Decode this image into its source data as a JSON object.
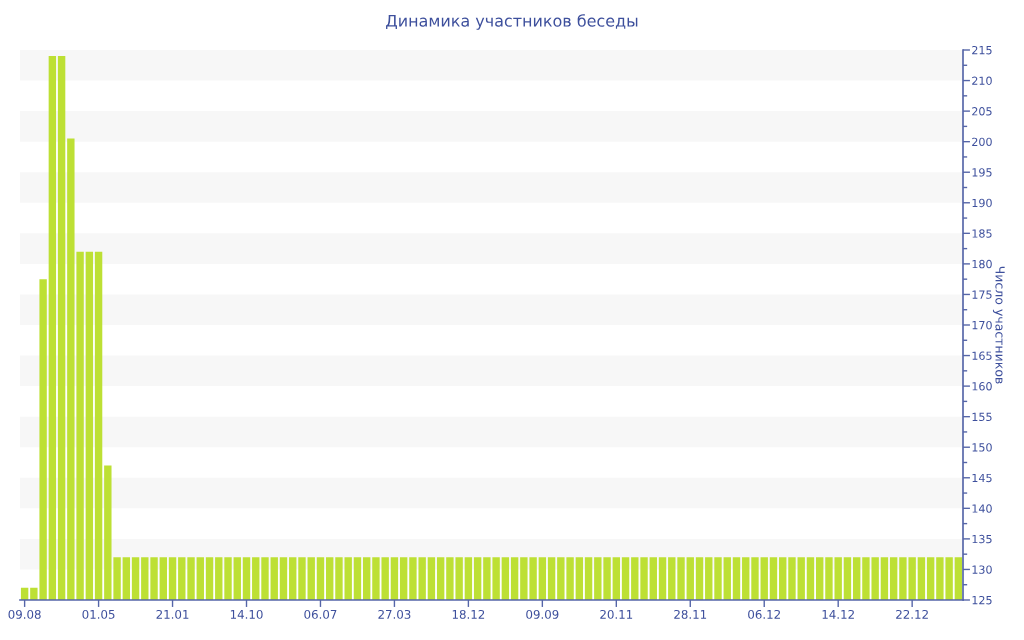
{
  "chart_data": {
    "type": "bar",
    "title": "Динамика участников беседы",
    "ylabel": "Число участников",
    "categories": [
      "09.08",
      null,
      null,
      null,
      null,
      null,
      null,
      null,
      "01.05",
      null,
      null,
      null,
      null,
      null,
      null,
      null,
      "21.01",
      null,
      null,
      null,
      null,
      null,
      null,
      null,
      "14.10",
      null,
      null,
      null,
      null,
      null,
      null,
      null,
      "06.07",
      null,
      null,
      null,
      null,
      null,
      null,
      null,
      "27.03",
      null,
      null,
      null,
      null,
      null,
      null,
      null,
      "18.12",
      null,
      null,
      null,
      null,
      null,
      null,
      null,
      "09.09",
      null,
      null,
      null,
      null,
      null,
      null,
      null,
      "20.11",
      null,
      null,
      null,
      null,
      null,
      null,
      null,
      "28.11",
      null,
      null,
      null,
      null,
      null,
      null,
      null,
      "06.12",
      null,
      null,
      null,
      null,
      null,
      null,
      null,
      "14.12",
      null,
      null,
      null,
      null,
      null,
      null,
      null,
      "22.12",
      null,
      null,
      null,
      null,
      null
    ],
    "series": [
      {
        "color": "#bde034",
        "values": [
          127,
          127,
          177.5,
          214,
          214,
          200.5,
          182,
          182,
          182,
          147,
          132,
          132,
          132,
          132,
          132,
          132,
          132,
          132,
          132,
          132,
          132,
          132,
          132,
          132,
          132,
          132,
          132,
          132,
          132,
          132,
          132,
          132,
          132,
          132,
          132,
          132,
          132,
          132,
          132,
          132,
          132,
          132,
          132,
          132,
          132,
          132,
          132,
          132,
          132,
          132,
          132,
          132,
          132,
          132,
          132,
          132,
          132,
          132,
          132,
          132,
          132,
          132,
          132,
          132,
          132,
          132,
          132,
          132,
          132,
          132,
          132,
          132,
          132,
          132,
          132,
          132,
          132,
          132,
          132,
          132,
          132,
          132,
          132,
          132,
          132,
          132,
          132,
          132,
          132,
          132,
          132,
          132,
          132,
          132,
          132,
          132,
          132,
          132,
          132,
          132,
          132,
          132
        ]
      }
    ],
    "ylim": [
      125,
      215
    ],
    "yticks": [
      125,
      {
        "value": 127.5,
        "label": null
      },
      130,
      {
        "value": 132.5,
        "label": null
      },
      135,
      {
        "value": 137.5,
        "label": null
      },
      140,
      {
        "value": 142.5,
        "label": null
      },
      145,
      {
        "value": 147.5,
        "label": null
      },
      150,
      {
        "value": 152.5,
        "label": null
      },
      155,
      {
        "value": 157.5,
        "label": null
      },
      160,
      {
        "value": 162.5,
        "label": null
      },
      165,
      {
        "value": 167.5,
        "label": null
      },
      170,
      {
        "value": 172.5,
        "label": null
      },
      175,
      {
        "value": 177.5,
        "label": null
      },
      180,
      {
        "value": 182.5,
        "label": null
      },
      185,
      {
        "value": 187.5,
        "label": null
      },
      190,
      {
        "value": 192.5,
        "label": null
      },
      195,
      {
        "value": 197.5,
        "label": null
      },
      200,
      {
        "value": 202.5,
        "label": null
      },
      205,
      {
        "value": 207.5,
        "label": null
      },
      210,
      {
        "value": 212.5,
        "label": null
      },
      215
    ],
    "bands": [
      {
        "axis": "y",
        "from": 130,
        "to": 135,
        "color": "#f7f7f7"
      },
      {
        "axis": "y",
        "from": 140,
        "to": 145,
        "color": "#f7f7f7"
      },
      {
        "axis": "y",
        "from": 150,
        "to": 155,
        "color": "#f7f7f7"
      },
      {
        "axis": "y",
        "from": 160,
        "to": 165,
        "color": "#f7f7f7"
      },
      {
        "axis": "y",
        "from": 170,
        "to": 175,
        "color": "#f7f7f7"
      },
      {
        "axis": "y",
        "from": 180,
        "to": 185,
        "color": "#f7f7f7"
      },
      {
        "axis": "y",
        "from": 190,
        "to": 195,
        "color": "#f7f7f7"
      },
      {
        "axis": "y",
        "from": 200,
        "to": 205,
        "color": "#f7f7f7"
      },
      {
        "axis": "y",
        "from": 210,
        "to": 215,
        "color": "#f7f7f7"
      }
    ]
  }
}
